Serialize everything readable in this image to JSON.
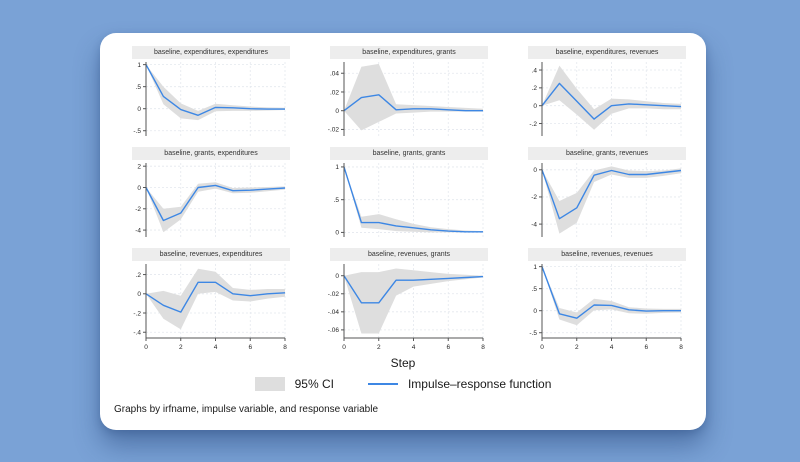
{
  "theme": {
    "background_color": "#7aa2d6",
    "card_color": "#ffffff",
    "title_bar_color": "#ededed",
    "ci_color": "#dedede",
    "line_color": "#3d87e4",
    "axis_color": "#555555",
    "grid_color": "#e4e8ee"
  },
  "figure": {
    "xlabel": "Step",
    "x_ticks": [
      0,
      2,
      4,
      6,
      8
    ],
    "legend_ci_label": "95% CI",
    "legend_irf_label": "Impulse–response function",
    "note": "Graphs by irfname, impulse variable, and response variable"
  },
  "chart_data": [
    {
      "type": "area",
      "title": "baseline, expenditures, expenditures",
      "x": [
        0,
        1,
        2,
        3,
        4,
        5,
        6,
        7,
        8
      ],
      "irf": [
        1,
        0.28,
        -0.02,
        -0.15,
        0.03,
        0.02,
        0.0,
        -0.01,
        -0.01
      ],
      "ci_lower": [
        1,
        0.1,
        -0.22,
        -0.26,
        -0.06,
        -0.05,
        -0.05,
        -0.04,
        -0.03
      ],
      "ci_upper": [
        1,
        0.5,
        0.12,
        -0.05,
        0.11,
        0.08,
        0.05,
        0.03,
        0.02
      ],
      "ylim": [
        -0.62,
        1.06
      ],
      "yticks": [
        [
          1,
          "1"
        ],
        [
          0.5,
          ".5"
        ],
        [
          0,
          "0"
        ],
        [
          -0.5,
          "-.5"
        ]
      ]
    },
    {
      "type": "area",
      "title": "baseline, expenditures, grants",
      "x": [
        0,
        1,
        2,
        3,
        4,
        5,
        6,
        7,
        8
      ],
      "irf": [
        0,
        0.014,
        0.017,
        0.001,
        0.002,
        0.002,
        0.001,
        0.0,
        0.0
      ],
      "ci_lower": [
        0,
        -0.021,
        -0.012,
        -0.003,
        -0.002,
        -0.001,
        -0.001,
        -0.001,
        -0.001
      ],
      "ci_upper": [
        0,
        0.047,
        0.05,
        0.007,
        0.006,
        0.005,
        0.004,
        0.003,
        0.002
      ],
      "ylim": [
        -0.027,
        0.052
      ],
      "yticks": [
        [
          0.04,
          ".04"
        ],
        [
          0.02,
          ".02"
        ],
        [
          0,
          "0"
        ],
        [
          -0.02,
          "-.02"
        ]
      ]
    },
    {
      "type": "area",
      "title": "baseline, expenditures, revenues",
      "x": [
        0,
        1,
        2,
        3,
        4,
        5,
        6,
        7,
        8
      ],
      "irf": [
        0,
        0.25,
        0.05,
        -0.15,
        0.0,
        0.02,
        0.01,
        0.0,
        -0.01
      ],
      "ci_lower": [
        0,
        0.06,
        -0.1,
        -0.27,
        -0.09,
        -0.03,
        -0.03,
        -0.04,
        -0.04
      ],
      "ci_upper": [
        0,
        0.45,
        0.19,
        -0.04,
        0.08,
        0.07,
        0.05,
        0.03,
        0.02
      ],
      "ylim": [
        -0.34,
        0.49
      ],
      "yticks": [
        [
          0.4,
          ".4"
        ],
        [
          0.2,
          ".2"
        ],
        [
          0,
          "0"
        ],
        [
          -0.2,
          "-.2"
        ]
      ]
    },
    {
      "type": "area",
      "title": "baseline, grants, expenditures",
      "x": [
        0,
        1,
        2,
        3,
        4,
        5,
        6,
        7,
        8
      ],
      "irf": [
        0,
        -3.1,
        -2.4,
        0.0,
        0.2,
        -0.3,
        -0.25,
        -0.15,
        -0.05
      ],
      "ci_lower": [
        0,
        -4.2,
        -3.0,
        -0.4,
        -0.1,
        -0.55,
        -0.5,
        -0.35,
        -0.2
      ],
      "ci_upper": [
        0,
        -2.0,
        -1.8,
        0.35,
        0.5,
        -0.05,
        0.0,
        0.05,
        0.1
      ],
      "ylim": [
        -4.65,
        2.3
      ],
      "yticks": [
        [
          2,
          "2"
        ],
        [
          0,
          "0"
        ],
        [
          -2,
          "-2"
        ],
        [
          -4,
          "-4"
        ]
      ]
    },
    {
      "type": "area",
      "title": "baseline, grants, grants",
      "x": [
        0,
        1,
        2,
        3,
        4,
        5,
        6,
        7,
        8
      ],
      "irf": [
        1,
        0.15,
        0.15,
        0.1,
        0.07,
        0.04,
        0.02,
        0.01,
        0.01
      ],
      "ci_lower": [
        1,
        0.07,
        0.05,
        0.02,
        0.01,
        0.0,
        0.0,
        0.0,
        0.0
      ],
      "ci_upper": [
        1,
        0.24,
        0.28,
        0.2,
        0.13,
        0.08,
        0.05,
        0.03,
        0.02
      ],
      "ylim": [
        -0.07,
        1.06
      ],
      "yticks": [
        [
          1,
          "1"
        ],
        [
          0.5,
          ".5"
        ],
        [
          0,
          "0"
        ]
      ]
    },
    {
      "type": "area",
      "title": "baseline, grants, revenues",
      "x": [
        0,
        1,
        2,
        3,
        4,
        5,
        6,
        7,
        8
      ],
      "irf": [
        0,
        -3.6,
        -2.8,
        -0.4,
        -0.05,
        -0.35,
        -0.35,
        -0.2,
        -0.05
      ],
      "ci_lower": [
        0,
        -4.7,
        -3.9,
        -0.9,
        -0.35,
        -0.6,
        -0.6,
        -0.45,
        -0.25
      ],
      "ci_upper": [
        0,
        -2.3,
        -1.7,
        -0.05,
        0.25,
        -0.05,
        -0.1,
        -0.05,
        0.1
      ],
      "ylim": [
        -4.95,
        0.5
      ],
      "yticks": [
        [
          0,
          "0"
        ],
        [
          -2,
          "-2"
        ],
        [
          -4,
          "-4"
        ]
      ]
    },
    {
      "type": "area",
      "title": "baseline, revenues, expenditures",
      "x": [
        0,
        1,
        2,
        3,
        4,
        5,
        6,
        7,
        8
      ],
      "irf": [
        0,
        -0.12,
        -0.19,
        0.12,
        0.12,
        0.0,
        -0.02,
        0.0,
        0.01
      ],
      "ci_lower": [
        0,
        -0.26,
        -0.37,
        0.0,
        0.02,
        -0.07,
        -0.08,
        -0.05,
        -0.03
      ],
      "ci_upper": [
        0,
        0.03,
        -0.02,
        0.26,
        0.23,
        0.06,
        0.04,
        0.05,
        0.05
      ],
      "ylim": [
        -0.46,
        0.31
      ],
      "yticks": [
        [
          0.2,
          ".2"
        ],
        [
          0,
          "0"
        ],
        [
          -0.2,
          "-.2"
        ],
        [
          -0.4,
          "-.4"
        ]
      ]
    },
    {
      "type": "area",
      "title": "baseline, revenues, grants",
      "x": [
        0,
        1,
        2,
        3,
        4,
        5,
        6,
        7,
        8
      ],
      "irf": [
        0,
        -0.03,
        -0.03,
        -0.005,
        -0.005,
        -0.004,
        -0.003,
        -0.002,
        -0.001
      ],
      "ci_lower": [
        0,
        -0.064,
        -0.064,
        -0.022,
        -0.012,
        -0.009,
        -0.006,
        -0.004,
        -0.002
      ],
      "ci_upper": [
        0,
        0.004,
        0.004,
        0.008,
        0.006,
        0.004,
        0.002,
        0.001,
        0.0
      ],
      "ylim": [
        -0.069,
        0.013
      ],
      "yticks": [
        [
          0,
          "0"
        ],
        [
          -0.02,
          "-.02"
        ],
        [
          -0.04,
          "-.04"
        ],
        [
          -0.06,
          "-.06"
        ]
      ]
    },
    {
      "type": "area",
      "title": "baseline, revenues, revenues",
      "x": [
        0,
        1,
        2,
        3,
        4,
        5,
        6,
        7,
        8
      ],
      "irf": [
        1,
        -0.07,
        -0.17,
        0.13,
        0.12,
        0.02,
        -0.01,
        0.0,
        0.0
      ],
      "ci_lower": [
        1,
        -0.2,
        -0.33,
        0.01,
        0.03,
        -0.06,
        -0.07,
        -0.05,
        -0.04
      ],
      "ci_upper": [
        1,
        0.06,
        -0.04,
        0.27,
        0.22,
        0.08,
        0.05,
        0.04,
        0.04
      ],
      "ylim": [
        -0.62,
        1.06
      ],
      "yticks": [
        [
          1,
          "1"
        ],
        [
          0.5,
          ".5"
        ],
        [
          0,
          "0"
        ],
        [
          -0.5,
          "-.5"
        ]
      ]
    }
  ]
}
